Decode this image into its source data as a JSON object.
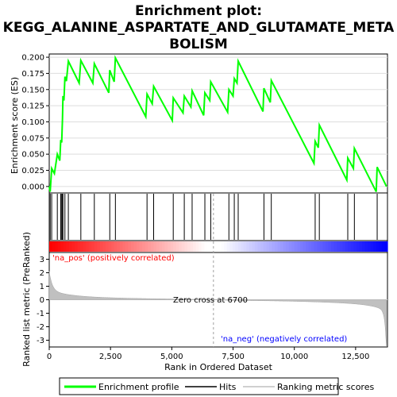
{
  "chart_data": {
    "type": "line",
    "title_lines": [
      "Enrichment plot:",
      "KEGG_ALANINE_ASPARTATE_AND_GLUTAMATE_META",
      "BOLISM"
    ],
    "es_panel": {
      "ylabel": "Enrichment score (ES)",
      "ylim": [
        -0.01,
        0.205
      ],
      "yticks": [
        "0.000",
        "0.025",
        "0.050",
        "0.075",
        "0.100",
        "0.125",
        "0.150",
        "0.175",
        "0.200"
      ],
      "ytick_values": [
        0,
        0.025,
        0.05,
        0.075,
        0.1,
        0.125,
        0.15,
        0.175,
        0.2
      ],
      "series_name": "Enrichment profile",
      "color": "#00ff00",
      "points": [
        [
          0,
          0.0
        ],
        [
          40,
          -0.008
        ],
        [
          100,
          0.028
        ],
        [
          210,
          0.02
        ],
        [
          330,
          0.05
        ],
        [
          430,
          0.04
        ],
        [
          470,
          0.072
        ],
        [
          510,
          0.068
        ],
        [
          540,
          0.105
        ],
        [
          560,
          0.14
        ],
        [
          600,
          0.133
        ],
        [
          640,
          0.17
        ],
        [
          700,
          0.163
        ],
        [
          780,
          0.194
        ],
        [
          1220,
          0.16
        ],
        [
          1290,
          0.195
        ],
        [
          1780,
          0.16
        ],
        [
          1840,
          0.19
        ],
        [
          2430,
          0.145
        ],
        [
          2470,
          0.18
        ],
        [
          2650,
          0.162
        ],
        [
          2700,
          0.199
        ],
        [
          3940,
          0.108
        ],
        [
          3990,
          0.143
        ],
        [
          4200,
          0.128
        ],
        [
          4260,
          0.155
        ],
        [
          5020,
          0.102
        ],
        [
          5060,
          0.137
        ],
        [
          5460,
          0.114
        ],
        [
          5510,
          0.14
        ],
        [
          5780,
          0.123
        ],
        [
          5830,
          0.148
        ],
        [
          6300,
          0.11
        ],
        [
          6350,
          0.145
        ],
        [
          6550,
          0.133
        ],
        [
          6590,
          0.162
        ],
        [
          7280,
          0.115
        ],
        [
          7330,
          0.15
        ],
        [
          7500,
          0.14
        ],
        [
          7550,
          0.167
        ],
        [
          7660,
          0.16
        ],
        [
          7710,
          0.194
        ],
        [
          8720,
          0.116
        ],
        [
          8760,
          0.152
        ],
        [
          9020,
          0.13
        ],
        [
          9060,
          0.164
        ],
        [
          10800,
          0.036
        ],
        [
          10850,
          0.07
        ],
        [
          10980,
          0.06
        ],
        [
          11020,
          0.095
        ],
        [
          12140,
          0.01
        ],
        [
          12180,
          0.044
        ],
        [
          12410,
          0.028
        ],
        [
          12450,
          0.059
        ],
        [
          13340,
          -0.008
        ],
        [
          13380,
          0.03
        ],
        [
          13760,
          0.0
        ]
      ]
    },
    "hits": [
      40,
      100,
      330,
      470,
      510,
      540,
      560,
      640,
      780,
      1290,
      1840,
      2470,
      2700,
      3990,
      4260,
      5060,
      5510,
      5830,
      6350,
      6590,
      7330,
      7550,
      7710,
      8760,
      9060,
      10850,
      11020,
      12180,
      12450,
      13380
    ],
    "rank_panel": {
      "ylabel": "Ranked list metric (PreRanked)",
      "ylim": [
        -3.5,
        3.5
      ],
      "yticks": [
        "3",
        "2",
        "1",
        "0",
        "-1",
        "-2",
        "-3"
      ],
      "ytick_values": [
        3,
        2,
        1,
        0,
        -1,
        -2,
        -3
      ],
      "xlabel": "Rank in Ordered Dataset",
      "xlim": [
        0,
        13800
      ],
      "xticks": [
        "0",
        "2,500",
        "5,000",
        "7,500",
        "10,000",
        "12,500"
      ],
      "xtick_values": [
        0,
        2500,
        5000,
        7500,
        10000,
        12500
      ],
      "zero_cross_rank": 6700,
      "n_total": 13760
    },
    "annotations": {
      "pos_label": "'na_pos' (positively correlated)",
      "neg_label": "'na_neg' (negatively correlated)",
      "zero_cross": "Zero cross at 6700",
      "pos_color": "#ff0000",
      "neg_color": "#0000ff"
    },
    "legend": {
      "placement": "bottom",
      "items": [
        {
          "label": "Enrichment profile",
          "color": "#00ff00"
        },
        {
          "label": "Hits",
          "color": "#000000"
        },
        {
          "label": "Ranking metric scores",
          "color": "#c0c0c0"
        }
      ]
    }
  }
}
